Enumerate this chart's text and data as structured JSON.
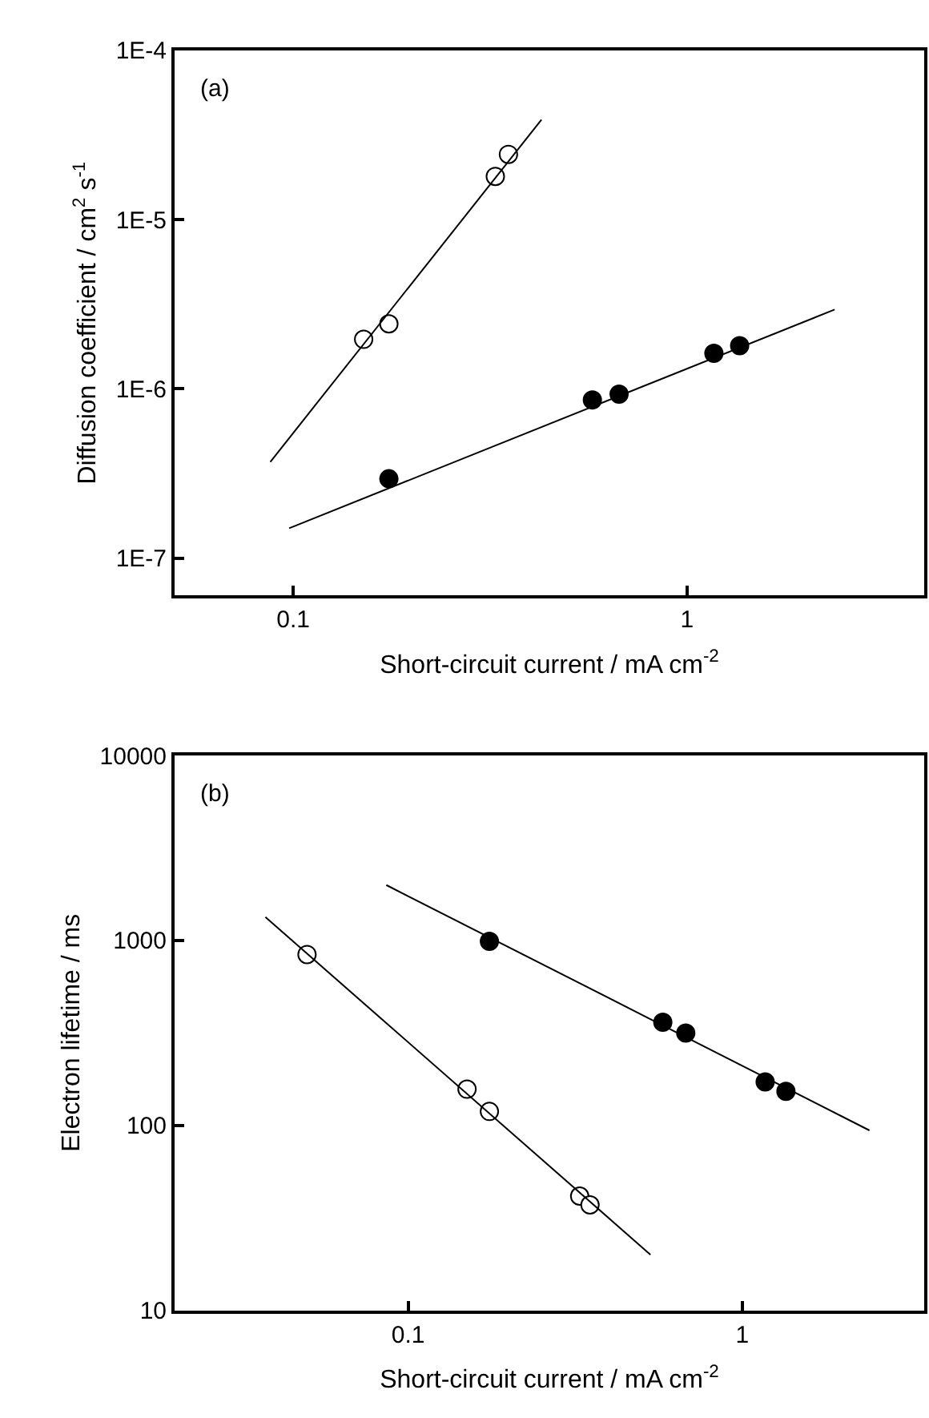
{
  "chart_data": [
    {
      "type": "scatter",
      "xlabel": "Short-circuit current / mA cm$^{-2}$",
      "ylabel": "Diffusion coefficient / cm$^{2}$ s$^{-1}$",
      "annotations": [
        "(a)"
      ],
      "log": "xy",
      "xlim": [
        0.05,
        4
      ],
      "ylim": [
        6e-08,
        0.0001
      ],
      "xticks": [
        0.1,
        1
      ],
      "yticks": [
        {
          "value": 1e-07,
          "label": "1E-7"
        },
        {
          "value": 1e-06,
          "label": "1E-6"
        },
        {
          "value": 1e-05,
          "label": "1E-5"
        },
        {
          "value": 0.0001,
          "label": "1E-4"
        }
      ],
      "series": [
        {
          "marker": "circle",
          "color": "#ffffff",
          "x": [
            0.151,
            0.175,
            0.326,
            0.352
          ],
          "values": [
            1.96e-06,
            2.42e-06,
            1.8e-05,
            2.43e-05
          ]
        },
        {
          "marker": "circle",
          "color": "#000000",
          "x": [
            0.175,
            0.575,
            0.672,
            1.17,
            1.36
          ],
          "values": [
            2.94e-07,
            8.6e-07,
            9.3e-07,
            1.62e-06,
            1.8e-06
          ]
        },
        {
          "type": "line",
          "marker": "none",
          "line_style": "solid",
          "color": "#000000",
          "x": [
            0.0875,
            0.427
          ],
          "values": [
            3.7e-07,
            3.89e-05
          ]
        },
        {
          "type": "line",
          "marker": "none",
          "line_style": "solid",
          "color": "#000000",
          "x": [
            0.0977,
            2.37
          ],
          "values": [
            1.5e-07,
            2.94e-06
          ]
        }
      ]
    },
    {
      "type": "scatter",
      "xlabel": "Short-circuit current / mA cm$^{-2}$",
      "ylabel": "Electron lifetime / ms",
      "annotations": [
        "(b)"
      ],
      "log": "xy",
      "xlim": [
        0.02,
        3.5
      ],
      "ylim": [
        10,
        10000
      ],
      "xticks": [
        0.1,
        1
      ],
      "yticks": [
        10,
        100,
        1000,
        10000
      ],
      "series": [
        {
          "marker": "circle",
          "color": "#ffffff",
          "x": [
            0.0498,
            0.15,
            0.175,
            0.326,
            0.35
          ],
          "values": [
            840,
            157,
            119,
            41.5,
            37.2
          ]
        },
        {
          "marker": "circle",
          "color": "#000000",
          "x": [
            0.175,
            0.578,
            0.677,
            1.17,
            1.35
          ],
          "values": [
            990,
            361,
            316,
            172,
            153
          ]
        },
        {
          "type": "line",
          "marker": "none",
          "line_style": "solid",
          "color": "#000000",
          "x": [
            0.0374,
            0.531
          ],
          "values": [
            1337,
            20
          ]
        },
        {
          "type": "line",
          "marker": "none",
          "line_style": "solid",
          "color": "#000000",
          "x": [
            0.086,
            2.4
          ],
          "values": [
            1993,
            94
          ]
        }
      ]
    }
  ]
}
